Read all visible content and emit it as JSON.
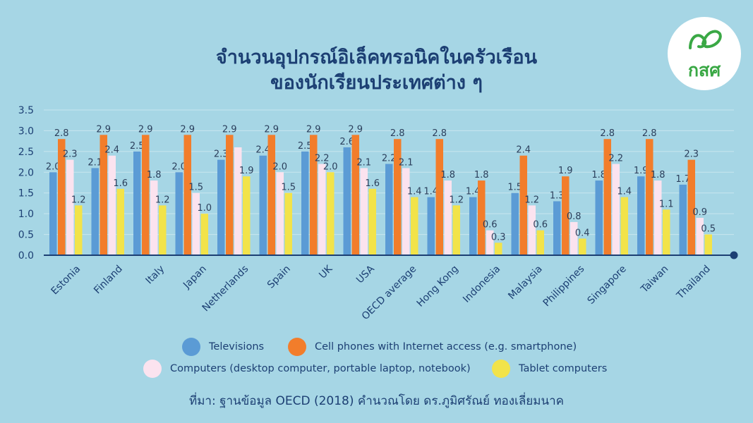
{
  "title_lines": [
    "จำนวนอุปกรณ์อิเล็คทรอนิคในครัวเรือน",
    "ของนักเรียนประเทศต่าง ๆ"
  ],
  "logo": {
    "text": "กสศ",
    "icon": "leaf-logo-icon",
    "color": "#3aa845"
  },
  "source": "ที่มา: ฐานข้อมูล OECD (2018) คำนวณโดย ดร.ภูมิศรัณย์ ทองเลี่ยมนาค",
  "colors": {
    "background": "#a6d6e5",
    "text": "#1c3f73"
  },
  "chart_data": {
    "type": "bar",
    "title": "จำนวนอุปกรณ์อิเล็คทรอนิคในครัวเรือน ของนักเรียนประเทศต่าง ๆ",
    "categories": [
      "Estonia",
      "Finland",
      "Italy",
      "Japan",
      "Netherlands",
      "Spain",
      "UK",
      "USA",
      "OECD average",
      "Hong Kong",
      "Indonesia",
      "Malaysia",
      "Philippines",
      "Singapore",
      "Taiwan",
      "Thailand"
    ],
    "series": [
      {
        "name": "Televisions",
        "color": "#5b9bd5",
        "values": [
          2.0,
          2.1,
          2.5,
          2.0,
          2.3,
          2.4,
          2.5,
          2.6,
          2.2,
          1.4,
          1.4,
          1.5,
          1.3,
          1.8,
          1.9,
          1.7
        ]
      },
      {
        "name": "Cell phones with Internet access (e.g. smartphone)",
        "color": "#f27d2b",
        "values": [
          2.8,
          2.9,
          2.9,
          2.9,
          2.9,
          2.9,
          2.9,
          2.9,
          2.8,
          2.8,
          1.8,
          2.4,
          1.9,
          2.8,
          2.8,
          2.3
        ]
      },
      {
        "name": "Computers (desktop computer, portable laptop, notebook)",
        "color": "#fbe3ef",
        "values": [
          2.3,
          2.4,
          1.8,
          1.5,
          2.6,
          2.0,
          2.2,
          2.1,
          2.1,
          1.8,
          0.6,
          1.2,
          0.8,
          2.2,
          1.8,
          0.9
        ]
      },
      {
        "name": "Tablet computers",
        "color": "#f2e34a",
        "values": [
          1.2,
          1.6,
          1.2,
          1.0,
          1.9,
          1.5,
          2.0,
          1.6,
          1.4,
          1.2,
          0.3,
          0.6,
          0.4,
          1.4,
          1.1,
          0.5
        ]
      }
    ],
    "data_labels": [
      [
        "2.0",
        "2.1",
        "2.5",
        "2.0",
        "2.3",
        "2.4",
        "2.5",
        "2.6",
        "2.2",
        "1.4",
        "1.4",
        "1.5",
        "1.3",
        "1.8",
        "1.9",
        "1.7"
      ],
      [
        "2.8",
        "2.9",
        "2.9",
        "2.9",
        "2.9",
        "2.9",
        "2.9",
        "2.9",
        "2.8",
        "2.8",
        "1.8",
        "2.4",
        "1.9",
        "2.8",
        "2.8",
        "2.3"
      ],
      [
        "2.3",
        "2.4",
        "1.8",
        "1.5",
        "",
        "2.0",
        "2.2",
        "2.1",
        "2.1",
        "1.8",
        "0.6",
        "1.2",
        "0.8",
        "2.2",
        "1.8",
        "0.9"
      ],
      [
        "1.2",
        "1.6",
        "1.2",
        "1.0",
        "1.9",
        "1.5",
        "2.0",
        "1.6",
        "1.4",
        "1.2",
        "0.3",
        "0.6",
        "0.4",
        "1.4",
        "1.1",
        "0.5"
      ]
    ],
    "yticks": [
      "0.0",
      "0.5",
      "1.0",
      "1.5",
      "2.0",
      "2.5",
      "3.0",
      "3.5"
    ],
    "ylim": [
      0,
      3.5
    ],
    "xlabel": "",
    "ylabel": "",
    "grid": true,
    "legend_position": "bottom"
  }
}
